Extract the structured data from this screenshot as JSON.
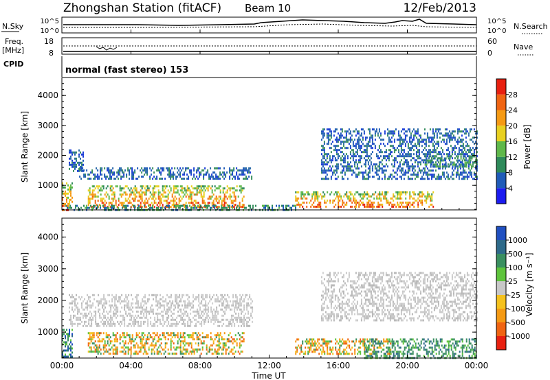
{
  "header": {
    "station": "Zhongshan Station (fitACF)",
    "beam": "Beam 10",
    "date": "12/Feb/2013"
  },
  "noise_panel": {
    "left_label": "N.Sky",
    "left_ticks": [
      "10^5",
      "10^0"
    ],
    "right_ticks": [
      "10^5",
      "10^0"
    ],
    "right_label": "N.Search"
  },
  "freq_panel": {
    "left_label_1": "Freq.",
    "left_label_2": "[MHz]",
    "left_ticks": [
      "18",
      "8"
    ],
    "right_ticks": [
      "60",
      "0"
    ],
    "right_label": "Nave"
  },
  "cpid_panel": {
    "label": "CPID",
    "text": "normal (fast stereo) 153"
  },
  "chart_data": [
    {
      "type": "heatmap",
      "quantity": "Power",
      "ylabel": "Slant Range [km]",
      "yticks": [
        1000,
        2000,
        3000,
        4000
      ],
      "ylim": [
        180,
        4600
      ],
      "xlim_hours": [
        0,
        24
      ],
      "colorbar_label": "Power [dB]",
      "colorbar_ticks": [
        "4",
        "8",
        "12",
        "16",
        "20",
        "24",
        "28"
      ],
      "colorbar_colors": [
        "#1c1cf0",
        "#1f5bb8",
        "#2e8a5a",
        "#5fb84a",
        "#e8d020",
        "#f59a14",
        "#f06412",
        "#e82010"
      ],
      "echo_regions": [
        {
          "t0": 0.0,
          "t1": 0.6,
          "r0": 200,
          "r1": 1100,
          "value": "high"
        },
        {
          "t0": 0.4,
          "t1": 1.2,
          "r0": 1500,
          "r1": 2200,
          "value": "low"
        },
        {
          "t0": 1.0,
          "t1": 11.0,
          "r0": 1200,
          "r1": 1600,
          "value": "low"
        },
        {
          "t0": 1.5,
          "t1": 10.5,
          "r0": 300,
          "r1": 1000,
          "value": "high"
        },
        {
          "t0": 0.2,
          "t1": 13.5,
          "r0": 200,
          "r1": 350,
          "value": "mid"
        },
        {
          "t0": 13.5,
          "t1": 21.5,
          "r0": 300,
          "r1": 800,
          "value": "high"
        },
        {
          "t0": 15.0,
          "t1": 24.0,
          "r0": 1200,
          "r1": 2900,
          "value": "low"
        },
        {
          "t0": 21.0,
          "t1": 24.0,
          "r0": 1600,
          "r1": 2000,
          "value": "mid"
        }
      ]
    },
    {
      "type": "heatmap",
      "quantity": "Velocity",
      "ylabel": "Slant Range [km]",
      "yticks": [
        1000,
        2000,
        3000,
        4000
      ],
      "ylim": [
        180,
        4600
      ],
      "xlim_hours": [
        0,
        24
      ],
      "xticks": [
        "00:00",
        "04:00",
        "08:00",
        "12:00",
        "16:00",
        "20:00",
        "00:00"
      ],
      "xlabel": "Time UT",
      "colorbar_label": "Velocity [m s⁻¹]",
      "colorbar_ticks": [
        "-1000",
        "-500",
        "-100",
        "-25",
        "25",
        "100",
        "500",
        "1000"
      ],
      "colorbar_colors": [
        "#e82010",
        "#f06412",
        "#f59a14",
        "#f5c21e",
        "#c8c8c8",
        "#5ec43c",
        "#3a8f60",
        "#2e6a8a",
        "#1f4fc0"
      ],
      "echo_regions": [
        {
          "t0": 0.0,
          "t1": 0.6,
          "r0": 200,
          "r1": 1100,
          "value": "mixed"
        },
        {
          "t0": 0.4,
          "t1": 11.0,
          "r0": 1200,
          "r1": 2200,
          "value": "ground-scatter"
        },
        {
          "t0": 1.5,
          "t1": 10.5,
          "r0": 300,
          "r1": 1000,
          "value": "negative"
        },
        {
          "t0": 13.5,
          "t1": 19.0,
          "r0": 300,
          "r1": 800,
          "value": "negative"
        },
        {
          "t0": 17.5,
          "t1": 24.0,
          "r0": 200,
          "r1": 800,
          "value": "positive"
        },
        {
          "t0": 15.0,
          "t1": 24.0,
          "r0": 1400,
          "r1": 2900,
          "value": "ground-scatter"
        }
      ]
    }
  ]
}
